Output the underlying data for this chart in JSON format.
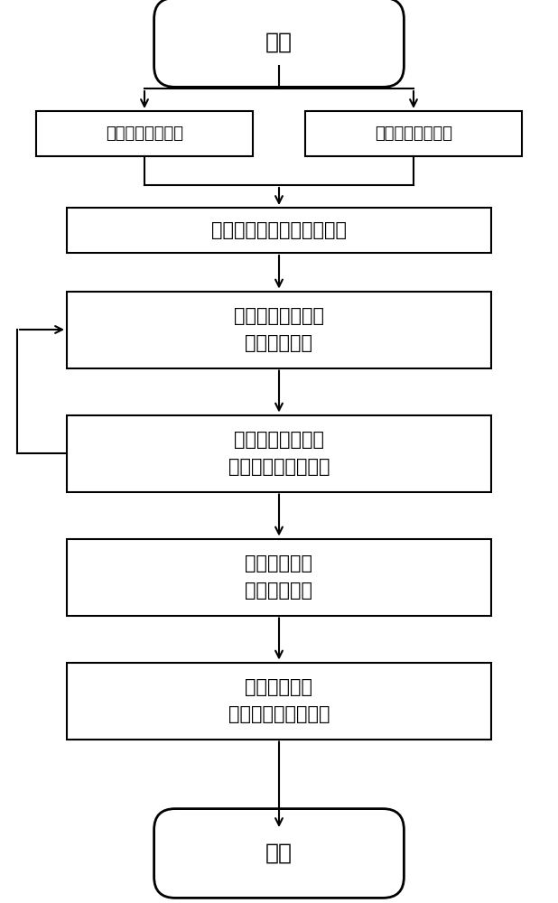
{
  "bg_color": "#ffffff",
  "line_color": "#000000",
  "text_color": "#000000",
  "font_size": 15,
  "font_size_small": 13,
  "start_label": "开始",
  "end_label": "结束",
  "box1l_label": "预测航班信息数据",
  "box1r_label": "预测气象信息数据",
  "box2_label": "依据风向确定跑道方位范围",
  "box3_label": "计算飞机起飞阶段\n污染物排放量",
  "box4_label": "评估跑道不同方位\n对污染物的扩散影响",
  "box5_label": "量化影响程度\n确定决策目标",
  "box6_label": "根据决策目标\n选取对应单跑道方位"
}
